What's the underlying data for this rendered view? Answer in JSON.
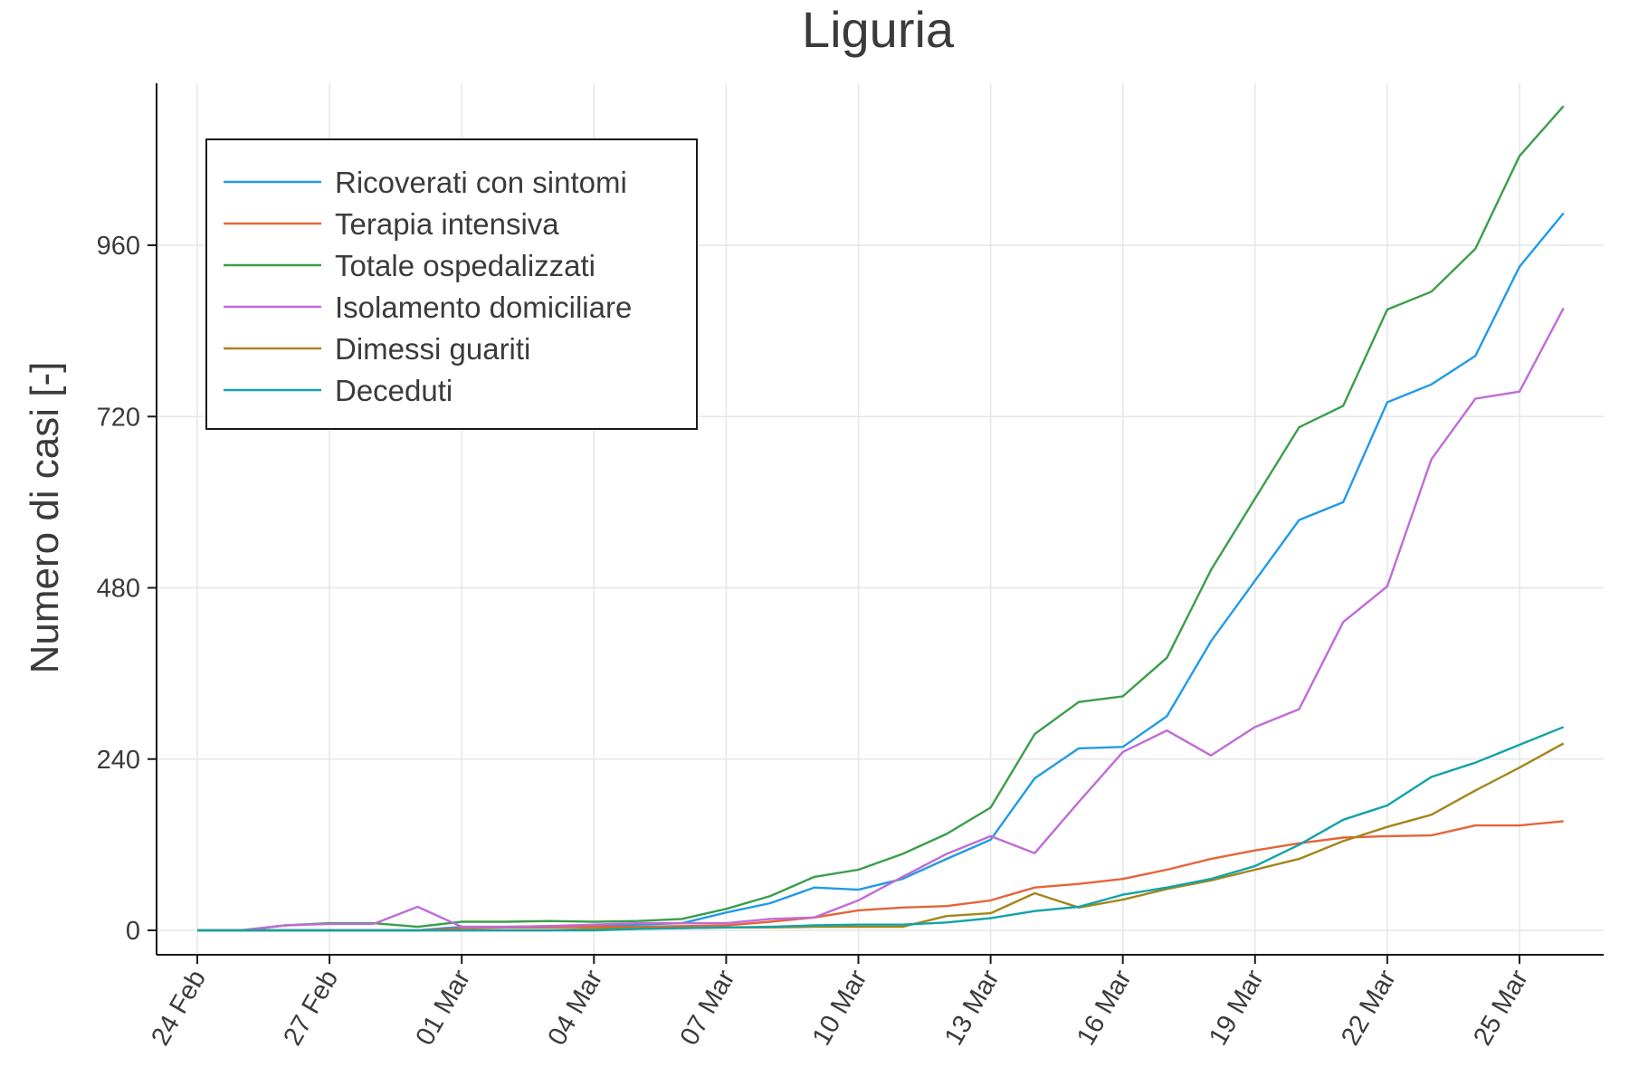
{
  "chart_data": {
    "type": "line",
    "title": "Liguria",
    "xlabel": "",
    "ylabel": "Numero di casi [-]",
    "ylim": [
      -35,
      1200
    ],
    "yticks": [
      0,
      240,
      480,
      720,
      960
    ],
    "x": [
      "24 Feb",
      "25 Feb",
      "26 Feb",
      "27 Feb",
      "28 Feb",
      "29 Feb",
      "01 Mar",
      "02 Mar",
      "03 Mar",
      "04 Mar",
      "05 Mar",
      "06 Mar",
      "07 Mar",
      "08 Mar",
      "09 Mar",
      "10 Mar",
      "11 Mar",
      "12 Mar",
      "13 Mar",
      "14 Mar",
      "15 Mar",
      "16 Mar",
      "17 Mar",
      "18 Mar",
      "19 Mar",
      "20 Mar",
      "21 Mar",
      "22 Mar",
      "23 Mar",
      "24 Mar",
      "25 Mar",
      "26 Mar"
    ],
    "xtick_labels": [
      "24 Feb",
      "27 Feb",
      "01 Mar",
      "04 Mar",
      "07 Mar",
      "10 Mar",
      "13 Mar",
      "16 Mar",
      "19 Mar",
      "22 Mar",
      "25 Mar"
    ],
    "grid": true,
    "legend_position": "top-left",
    "series": [
      {
        "name": "Ricoverati con sintomi",
        "color": "#1f9be8",
        "values": [
          0,
          0,
          0,
          0,
          0,
          0,
          5,
          5,
          6,
          7,
          8,
          10,
          25,
          38,
          60,
          57,
          72,
          100,
          127,
          213,
          255,
          257,
          300,
          405,
          490,
          575,
          600,
          740,
          765,
          805,
          930,
          1005
        ]
      },
      {
        "name": "Terapia intensiva",
        "color": "#e5643a",
        "values": [
          0,
          0,
          0,
          0,
          0,
          0,
          3,
          4,
          4,
          5,
          5,
          6,
          7,
          12,
          18,
          28,
          32,
          34,
          42,
          60,
          65,
          72,
          85,
          100,
          112,
          122,
          130,
          132,
          133,
          147,
          147,
          153
        ]
      },
      {
        "name": "Totale ospedalizzati",
        "color": "#3a9e4a",
        "values": [
          0,
          0,
          7,
          10,
          10,
          5,
          12,
          12,
          13,
          12,
          13,
          16,
          30,
          48,
          75,
          85,
          107,
          135,
          172,
          275,
          320,
          328,
          382,
          505,
          605,
          705,
          735,
          870,
          895,
          955,
          1085,
          1155
        ]
      },
      {
        "name": "Isolamento domiciliare",
        "color": "#c06bd8",
        "values": [
          0,
          0,
          7,
          9,
          9,
          33,
          5,
          5,
          6,
          8,
          10,
          10,
          10,
          16,
          18,
          42,
          75,
          107,
          132,
          108,
          180,
          250,
          280,
          245,
          285,
          310,
          432,
          482,
          660,
          745,
          755,
          872
        ]
      },
      {
        "name": "Dimessi guariti",
        "color": "#a3861b",
        "values": [
          0,
          0,
          0,
          0,
          0,
          0,
          0,
          0,
          0,
          2,
          3,
          3,
          4,
          4,
          5,
          5,
          5,
          20,
          24,
          52,
          32,
          43,
          58,
          70,
          85,
          100,
          125,
          145,
          162,
          196,
          228,
          262
        ]
      },
      {
        "name": "Deceduti",
        "color": "#12a3a8",
        "values": [
          0,
          0,
          0,
          0,
          0,
          0,
          0,
          0,
          0,
          0,
          2,
          3,
          4,
          5,
          7,
          8,
          8,
          11,
          17,
          27,
          33,
          50,
          60,
          72,
          90,
          120,
          155,
          175,
          215,
          235,
          260,
          285
        ]
      }
    ]
  }
}
